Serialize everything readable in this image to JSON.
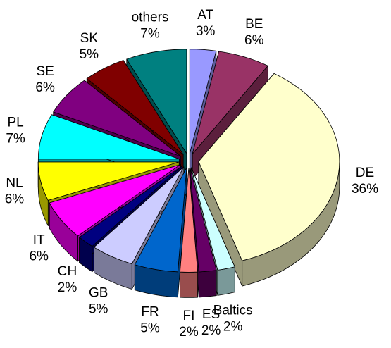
{
  "chart_data": {
    "type": "pie",
    "categories": [
      "AT",
      "BE",
      "DE",
      "Baltics",
      "ES",
      "FI",
      "FR",
      "GB",
      "CH",
      "IT",
      "NL",
      "PL",
      "SE",
      "SK",
      "others"
    ],
    "values": [
      3,
      6,
      36,
      2,
      2,
      2,
      5,
      5,
      2,
      6,
      6,
      7,
      6,
      5,
      7
    ],
    "value_labels": [
      "3%",
      "6%",
      "36%",
      "2%",
      "2%",
      "2%",
      "5%",
      "5%",
      "2%",
      "6%",
      "6%",
      "7%",
      "6%",
      "5%",
      "7%"
    ],
    "colors": [
      "#9999ff",
      "#993366",
      "#ffffcc",
      "#ccffff",
      "#660066",
      "#ff8080",
      "#0066cc",
      "#ccccff",
      "#000080",
      "#ff00ff",
      "#ffff00",
      "#00ffff",
      "#800080",
      "#800000",
      "#008080"
    ]
  }
}
